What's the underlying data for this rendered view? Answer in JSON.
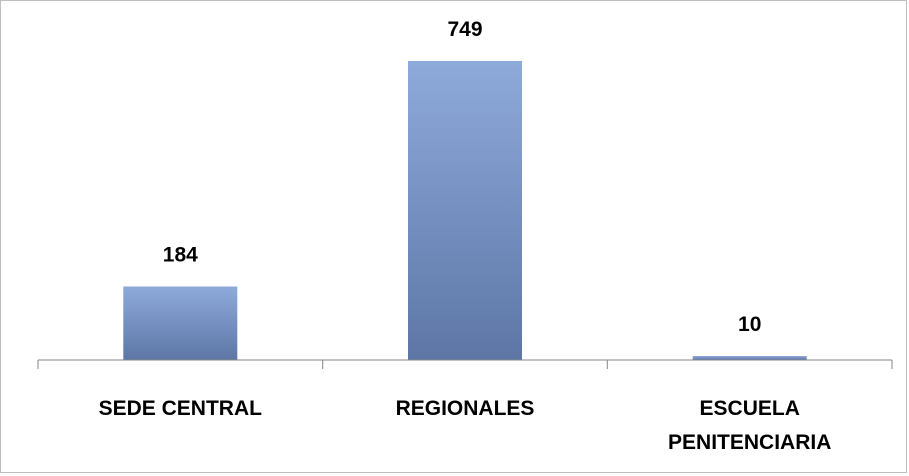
{
  "chart_data": {
    "type": "bar",
    "categories": [
      "SEDE CENTRAL",
      "REGIONALES",
      "ESCUELA PENITENCIARIA"
    ],
    "category_lines": [
      [
        "SEDE CENTRAL"
      ],
      [
        "REGIONALES"
      ],
      [
        "ESCUELA",
        "PENITENCIARIA"
      ]
    ],
    "values": [
      184,
      749,
      10
    ],
    "data_labels": [
      "184",
      "749",
      "10"
    ],
    "ylim": [
      0,
      800
    ],
    "grid": false,
    "legend": "none",
    "colors": {
      "bar_top": "#8eaadb",
      "bar_bottom": "#5d76a6",
      "axis": "#868686"
    }
  }
}
